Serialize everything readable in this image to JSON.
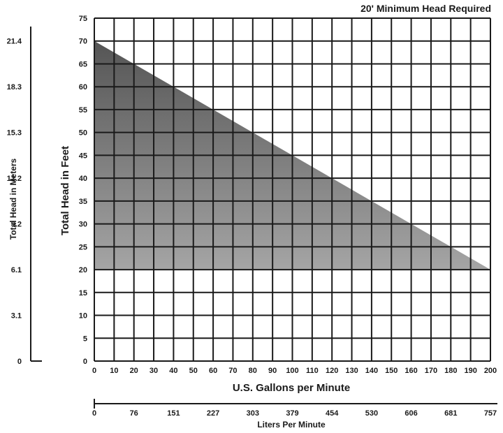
{
  "chart_data": {
    "type": "area",
    "title": "20' Minimum Head Required",
    "x": [
      0,
      200
    ],
    "y": [
      70,
      20
    ],
    "xlim": [
      0,
      200
    ],
    "ylim": [
      0,
      75
    ],
    "grid": true,
    "xlabel": "U.S. Gallons per Minute",
    "ylabel": "Total Head in Feet",
    "x_ticks": [
      0,
      10,
      20,
      30,
      40,
      50,
      60,
      70,
      80,
      90,
      100,
      110,
      120,
      130,
      140,
      150,
      160,
      170,
      180,
      190,
      200
    ],
    "y_ticks": [
      0,
      5,
      10,
      15,
      20,
      25,
      30,
      35,
      40,
      45,
      50,
      55,
      60,
      65,
      70,
      75
    ],
    "floor": 20,
    "secondary_x_axis": {
      "label": "Liters Per Minute",
      "ticks": [
        "0",
        "76",
        "151",
        "227",
        "303",
        "379",
        "454",
        "530",
        "606",
        "681",
        "757"
      ],
      "gpm_positions": [
        0,
        20,
        40,
        60,
        80,
        100,
        120,
        140,
        160,
        180,
        200
      ]
    },
    "secondary_y_axis": {
      "label": "Total Head in Meters",
      "ticks": [
        "0",
        "3.1",
        "6.1",
        "9.2",
        "12.2",
        "15.3",
        "18.3",
        "21.4"
      ],
      "feet_positions": [
        0,
        10,
        20,
        30,
        40,
        50,
        60,
        70
      ]
    }
  }
}
